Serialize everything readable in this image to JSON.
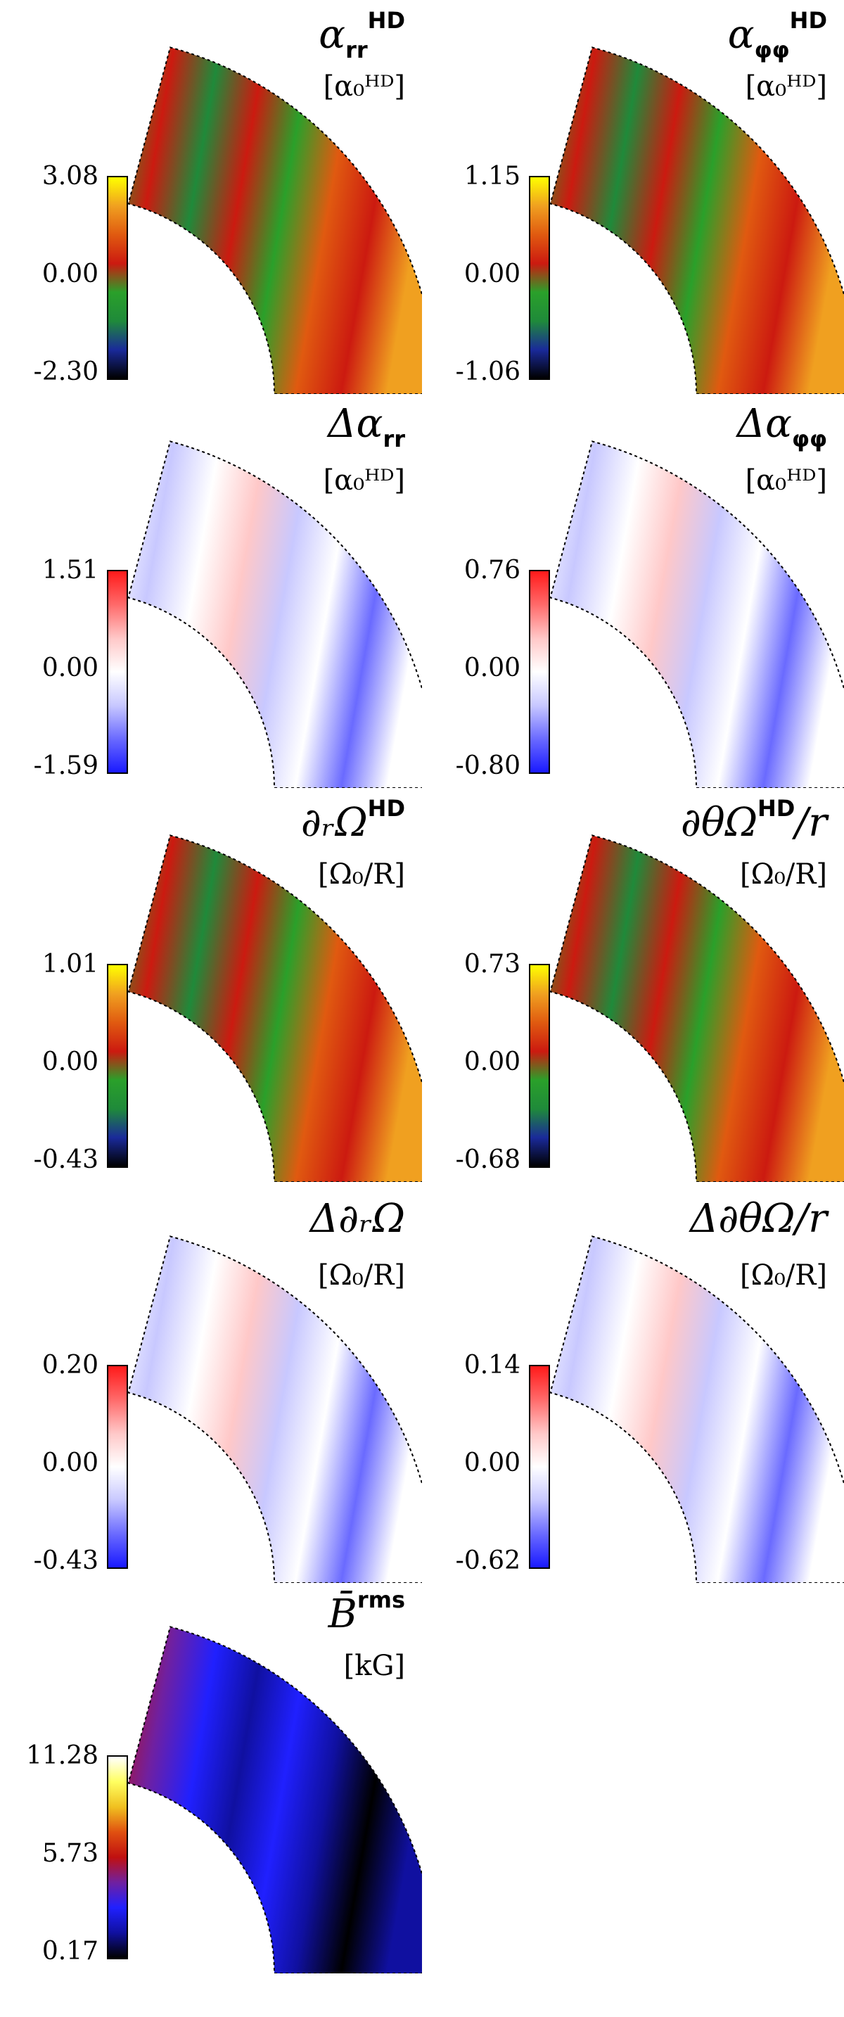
{
  "panels": [
    {
      "id": "alpha-rr-hd",
      "title": "α",
      "title_sup": "HD",
      "title_sub": "rr",
      "unit": "[α₀ᴴᴰ]",
      "colorbar": {
        "max": "3.08",
        "mid": "0.00",
        "min": "-2.30",
        "scheme": "hd"
      }
    },
    {
      "id": "alpha-phiphi-hd",
      "title": "α",
      "title_sup": "HD",
      "title_sub": "φφ",
      "unit": "[α₀ᴴᴰ]",
      "colorbar": {
        "max": "1.15",
        "mid": "0.00",
        "min": "-1.06",
        "scheme": "hd"
      }
    },
    {
      "id": "delta-alpha-rr",
      "title": "Δα",
      "title_sup": "",
      "title_sub": "rr",
      "unit": "[α₀ᴴᴰ]",
      "colorbar": {
        "max": "1.51",
        "mid": "0.00",
        "min": "-1.59",
        "scheme": "diverging"
      }
    },
    {
      "id": "delta-alpha-phiphi",
      "title": "Δα",
      "title_sup": "",
      "title_sub": "φφ",
      "unit": "[α₀ᴴᴰ]",
      "colorbar": {
        "max": "0.76",
        "mid": "0.00",
        "min": "-0.80",
        "scheme": "diverging"
      }
    },
    {
      "id": "dr-omega-hd",
      "title": "∂ᵣΩ",
      "title_sup": "HD",
      "title_sub": "",
      "unit": "[Ω₀/R]",
      "colorbar": {
        "max": "1.01",
        "mid": "0.00",
        "min": "-0.43",
        "scheme": "hd"
      }
    },
    {
      "id": "dtheta-omega-hd",
      "title": "∂θΩ",
      "title_sup": "HD",
      "title_sub": "",
      "title_suffix": "/r",
      "unit": "[Ω₀/R]",
      "colorbar": {
        "max": "0.73",
        "mid": "0.00",
        "min": "-0.68",
        "scheme": "hd"
      }
    },
    {
      "id": "delta-dr-omega",
      "title": "Δ∂ᵣΩ",
      "title_sup": "",
      "title_sub": "",
      "unit": "[Ω₀/R]",
      "colorbar": {
        "max": "0.20",
        "mid": "0.00",
        "min": "-0.43",
        "scheme": "diverging"
      }
    },
    {
      "id": "delta-dtheta-omega",
      "title": "Δ∂θΩ/r",
      "title_sup": "",
      "title_sub": "",
      "unit": "[Ω₀/R]",
      "colorbar": {
        "max": "0.14",
        "mid": "0.00",
        "min": "-0.62",
        "scheme": "diverging"
      }
    },
    {
      "id": "b-rms",
      "title": "B̄",
      "title_sup": "rms",
      "title_sub": "",
      "unit": "[kG]",
      "colorbar": {
        "max": "11.28",
        "mid": "5.73",
        "min": "0.17",
        "scheme": "field"
      }
    }
  ],
  "colors": {
    "hd": [
      "#000000",
      "#1a2a9a",
      "#1f8a3a",
      "#2aa02a",
      "#cc1a10",
      "#e05a10",
      "#f0a020",
      "#ffff00"
    ],
    "diverging": [
      "#1a1aff",
      "#6a6aff",
      "#c8c8ff",
      "#ffffff",
      "#ffc8c8",
      "#ff6a6a",
      "#ff1a1a"
    ],
    "field": [
      "#000000",
      "#1010a0",
      "#2020ff",
      "#7020a0",
      "#c01010",
      "#e05010",
      "#f0c020",
      "#ffff60",
      "#ffffff"
    ]
  }
}
